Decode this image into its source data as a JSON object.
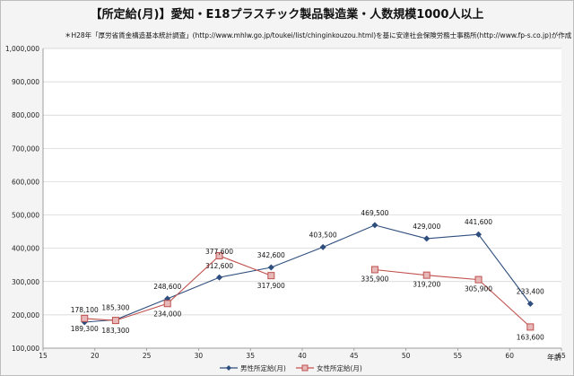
{
  "chart_data": {
    "type": "line",
    "title": "【所定給(月)】愛知・E18プラスチック製品製造業・人数規模1000人以上",
    "subtitle": "＊H28年「厚労省賃金構造基本統計調査」(http://www.mhlw.go.jp/toukei/list/chinginkouzou.html)を基に安達社会保険労務士事務所(http://www.fp-s.co.jp)が作成",
    "xlabel": "年齢",
    "ylabel": "",
    "xlim": [
      15,
      65
    ],
    "ylim": [
      100000,
      1000000
    ],
    "x_ticks": [
      "15",
      "20",
      "25",
      "30",
      "35",
      "40",
      "45",
      "50",
      "55",
      "60",
      "65"
    ],
    "y_ticks": [
      "100,000",
      "200,000",
      "300,000",
      "400,000",
      "500,000",
      "600,000",
      "700,000",
      "800,000",
      "900,000",
      "1,000,000"
    ],
    "grid": "horizontal",
    "legend_position": "bottom",
    "series": [
      {
        "name": "男性所定給(月)",
        "color": "#2e4e7e",
        "marker": "diamond",
        "points": [
          {
            "x": 19,
            "y": 178100,
            "label": "178,100"
          },
          {
            "x": 22,
            "y": 185300,
            "label": "185,300"
          },
          {
            "x": 27,
            "y": 248600,
            "label": "248,600"
          },
          {
            "x": 32,
            "y": 312600,
            "label": "312,600"
          },
          {
            "x": 37,
            "y": 342600,
            "label": "342,600"
          },
          {
            "x": 42,
            "y": 403500,
            "label": "403,500"
          },
          {
            "x": 47,
            "y": 469500,
            "label": "469,500"
          },
          {
            "x": 52,
            "y": 429000,
            "label": "429,000"
          },
          {
            "x": 57,
            "y": 441600,
            "label": "441,600"
          },
          {
            "x": 62,
            "y": 233400,
            "label": "233,400"
          }
        ]
      },
      {
        "name": "女性所定給(月)",
        "color": "#c0504d",
        "marker": "square",
        "points": [
          {
            "x": 19,
            "y": 189300,
            "label": "189,300"
          },
          {
            "x": 22,
            "y": 183300,
            "label": "183,300"
          },
          {
            "x": 27,
            "y": 234000,
            "label": "234,000"
          },
          {
            "x": 32,
            "y": 377600,
            "label": "377,600"
          },
          {
            "x": 37,
            "y": 317900,
            "label": "317,900"
          },
          {
            "x": 47,
            "y": 335900,
            "label": "335,900",
            "break_before": true
          },
          {
            "x": 52,
            "y": 319200,
            "label": "319,200"
          },
          {
            "x": 57,
            "y": 305900,
            "label": "305,900"
          },
          {
            "x": 62,
            "y": 163600,
            "label": "163,600"
          }
        ]
      }
    ]
  }
}
